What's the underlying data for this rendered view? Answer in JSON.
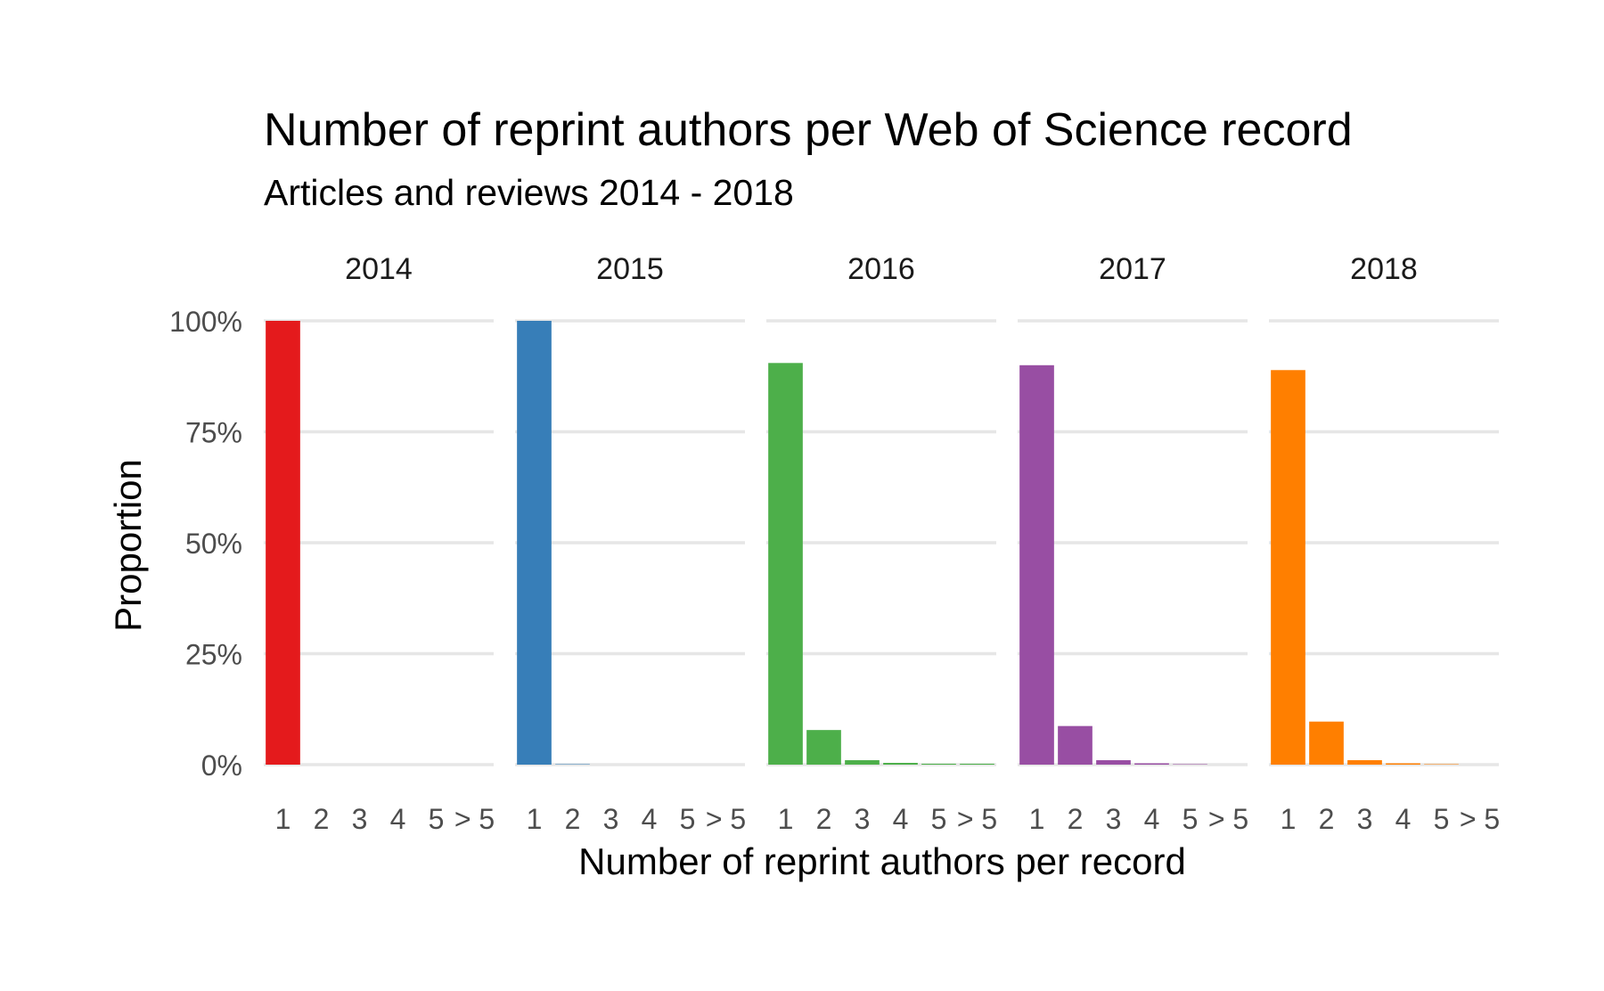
{
  "chart_data": {
    "type": "bar",
    "title": "Number of reprint authors per Web of Science record",
    "subtitle": "Articles and reviews 2014 - 2018",
    "xlabel": "Number of reprint authors per record",
    "ylabel": "Proportion",
    "ylim": [
      0,
      1
    ],
    "y_ticks": [
      {
        "value": 0,
        "label": "0%"
      },
      {
        "value": 0.25,
        "label": "25%"
      },
      {
        "value": 0.5,
        "label": "50%"
      },
      {
        "value": 0.75,
        "label": "75%"
      },
      {
        "value": 1,
        "label": "100%"
      }
    ],
    "categories": [
      "1",
      "2",
      "3",
      "4",
      "5",
      "> 5"
    ],
    "grid": true,
    "legend": "none",
    "facets": [
      {
        "label": "2014",
        "color": "#e41a1c",
        "values": [
          1.0,
          0,
          0,
          0,
          0,
          0
        ]
      },
      {
        "label": "2015",
        "color": "#377eb8",
        "values": [
          1.0,
          0.001,
          0,
          0,
          0,
          0
        ]
      },
      {
        "label": "2016",
        "color": "#4daf4a",
        "values": [
          0.905,
          0.078,
          0.01,
          0.004,
          0.002,
          0.002
        ]
      },
      {
        "label": "2017",
        "color": "#984ea3",
        "values": [
          0.9,
          0.087,
          0.01,
          0.003,
          0.001,
          0
        ]
      },
      {
        "label": "2018",
        "color": "#ff7f00",
        "values": [
          0.889,
          0.097,
          0.01,
          0.003,
          0.001,
          0
        ]
      }
    ]
  }
}
